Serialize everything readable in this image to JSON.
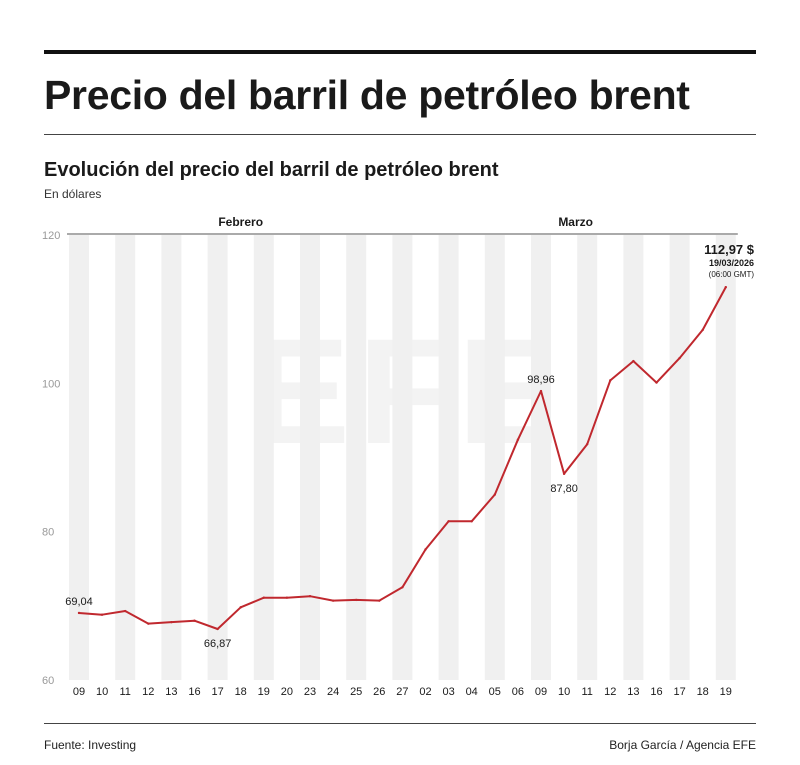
{
  "header": {
    "title": "Precio del barril de petróleo brent",
    "subtitle": "Evolución del precio del barril de petróleo brent",
    "unit": "En dólares"
  },
  "footer": {
    "source": "Fuente: Investing",
    "credit": "Borja García / Agencia EFE"
  },
  "watermark": "EFE",
  "chart_data": {
    "type": "line",
    "month_labels": [
      "Febrero",
      "Marzo"
    ],
    "categories": [
      "09",
      "10",
      "11",
      "12",
      "13",
      "16",
      "17",
      "18",
      "19",
      "20",
      "23",
      "24",
      "25",
      "26",
      "27",
      "02",
      "03",
      "04",
      "05",
      "06",
      "09",
      "10",
      "11",
      "12",
      "13",
      "16",
      "17",
      "18",
      "19"
    ],
    "month_of_category": [
      0,
      0,
      0,
      0,
      0,
      0,
      0,
      0,
      0,
      0,
      0,
      0,
      0,
      0,
      0,
      1,
      1,
      1,
      1,
      1,
      1,
      1,
      1,
      1,
      1,
      1,
      1,
      1,
      1
    ],
    "series": [
      {
        "values": [
          69.04,
          68.8,
          69.3,
          67.6,
          67.8,
          68.0,
          66.87,
          69.8,
          71.1,
          71.1,
          71.3,
          70.7,
          70.8,
          70.7,
          72.5,
          77.6,
          81.4,
          81.4,
          85.0,
          92.4,
          98.96,
          87.8,
          91.8,
          100.4,
          103.0,
          100.1,
          103.4,
          107.2,
          112.97
        ],
        "color": "#c0282e"
      }
    ],
    "ylim": [
      60,
      120
    ],
    "yticks": [
      60,
      80,
      100,
      120
    ],
    "annotations": [
      {
        "index": 0,
        "text": "69,04",
        "pos": "above"
      },
      {
        "index": 6,
        "text": "66,87",
        "pos": "below"
      },
      {
        "index": 20,
        "text": "98,96",
        "pos": "above"
      },
      {
        "index": 21,
        "text": "87,80",
        "pos": "below"
      }
    ],
    "final_label": {
      "value": "112,97 $",
      "date": "19/03/2026",
      "time": "(06:00 GMT)"
    },
    "grid": "alternating vertical bands",
    "colors": {
      "line": "#c0282e",
      "band": "#f0f0f0",
      "text": "#1a1a1a",
      "tick": "#999999"
    }
  }
}
